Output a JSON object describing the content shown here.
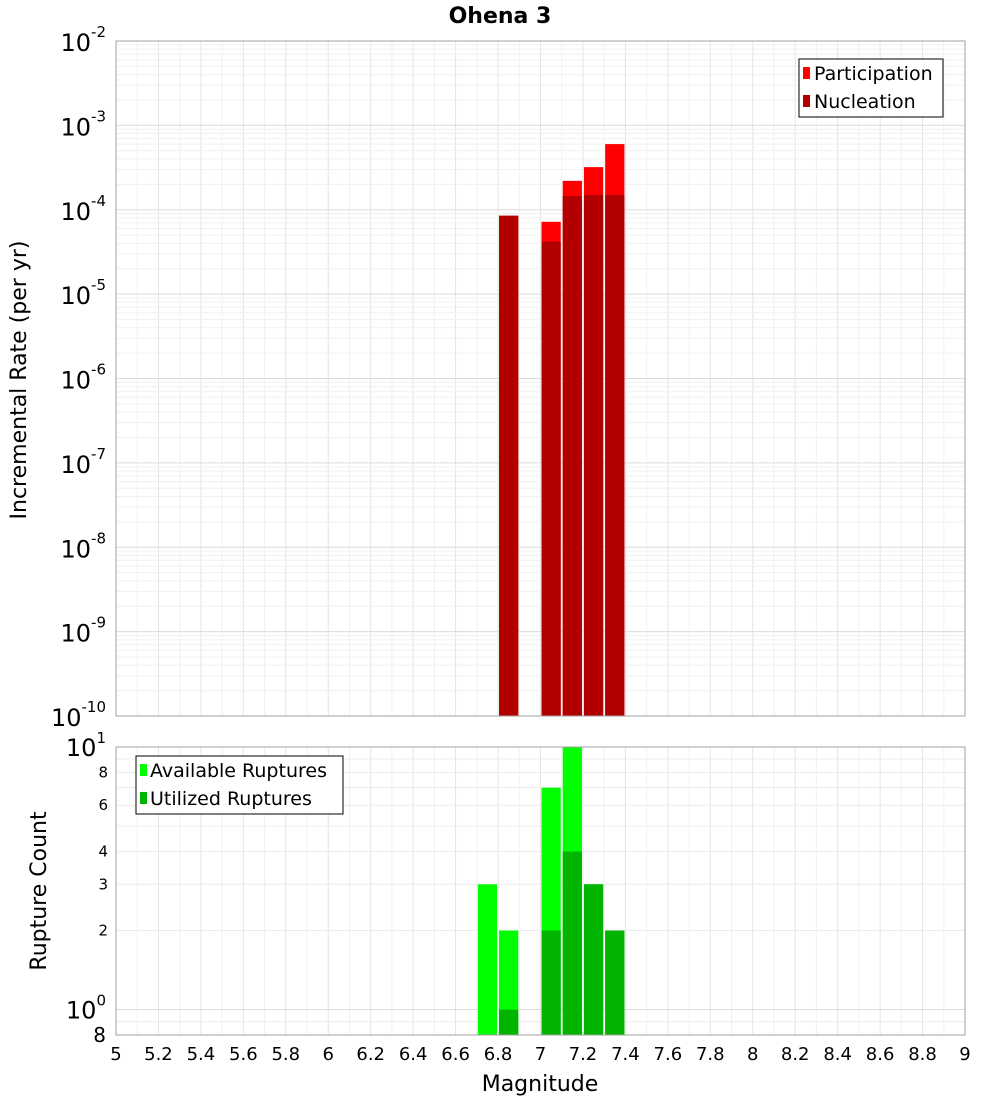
{
  "chart_data": [
    {
      "type": "bar",
      "title": "Ohena 3",
      "ylabel": "Incremental Rate (per yr)",
      "yscale": "log",
      "ylim": [
        1e-10,
        0.01
      ],
      "y_ticks": [
        {
          "base": "10",
          "exp": "-2"
        },
        {
          "base": "10",
          "exp": "-3"
        },
        {
          "base": "10",
          "exp": "-4"
        },
        {
          "base": "10",
          "exp": "-5"
        },
        {
          "base": "10",
          "exp": "-6"
        },
        {
          "base": "10",
          "exp": "-7"
        },
        {
          "base": "10",
          "exp": "-8"
        },
        {
          "base": "10",
          "exp": "-9"
        },
        {
          "base": "10",
          "exp": "-10"
        }
      ],
      "xlim": [
        5,
        9
      ],
      "bar_width": 0.1,
      "grid": true,
      "legend_position": "top-right",
      "series": [
        {
          "name": "Participation",
          "color": "#ff0000",
          "x": [
            6.85,
            7.05,
            7.15,
            7.25,
            7.35
          ],
          "values": [
            8.5e-05,
            7.2e-05,
            0.00022,
            0.00032,
            0.0006
          ]
        },
        {
          "name": "Nucleation",
          "color": "#b20000",
          "x": [
            6.85,
            7.05,
            7.15,
            7.25,
            7.35
          ],
          "values": [
            8.5e-05,
            4.2e-05,
            0.000145,
            0.00015,
            0.00015
          ]
        }
      ]
    },
    {
      "type": "bar",
      "ylabel": "Rupture Count",
      "xlabel": "Magnitude",
      "yscale": "log",
      "ylim": [
        0.8,
        10
      ],
      "y_ticks": [
        {
          "value": 10,
          "base": "10",
          "exp": "1"
        },
        {
          "value": 8,
          "label": "8"
        },
        {
          "value": 6,
          "label": "6"
        },
        {
          "value": 4,
          "label": "4"
        },
        {
          "value": 3,
          "label": "3"
        },
        {
          "value": 2,
          "label": "2"
        },
        {
          "value": 1,
          "base": "10",
          "exp": "0"
        },
        {
          "value": 0.8,
          "label": "8"
        }
      ],
      "xlim": [
        5,
        9
      ],
      "x_ticks": [
        "5",
        "5.2",
        "5.4",
        "5.6",
        "5.8",
        "6",
        "6.2",
        "6.4",
        "6.6",
        "6.8",
        "7",
        "7.2",
        "7.4",
        "7.6",
        "7.8",
        "8",
        "8.2",
        "8.4",
        "8.6",
        "8.8",
        "9"
      ],
      "bar_width": 0.1,
      "grid": true,
      "legend_position": "top-left",
      "series": [
        {
          "name": "Available Ruptures",
          "color": "#00ff00",
          "x": [
            6.75,
            6.85,
            7.05,
            7.15,
            7.25,
            7.35
          ],
          "values": [
            3,
            2,
            7,
            10,
            3,
            2
          ]
        },
        {
          "name": "Utilized Ruptures",
          "color": "#00b400",
          "x": [
            6.85,
            7.05,
            7.15,
            7.25,
            7.35
          ],
          "values": [
            1,
            2,
            4,
            3,
            2
          ]
        }
      ]
    }
  ]
}
